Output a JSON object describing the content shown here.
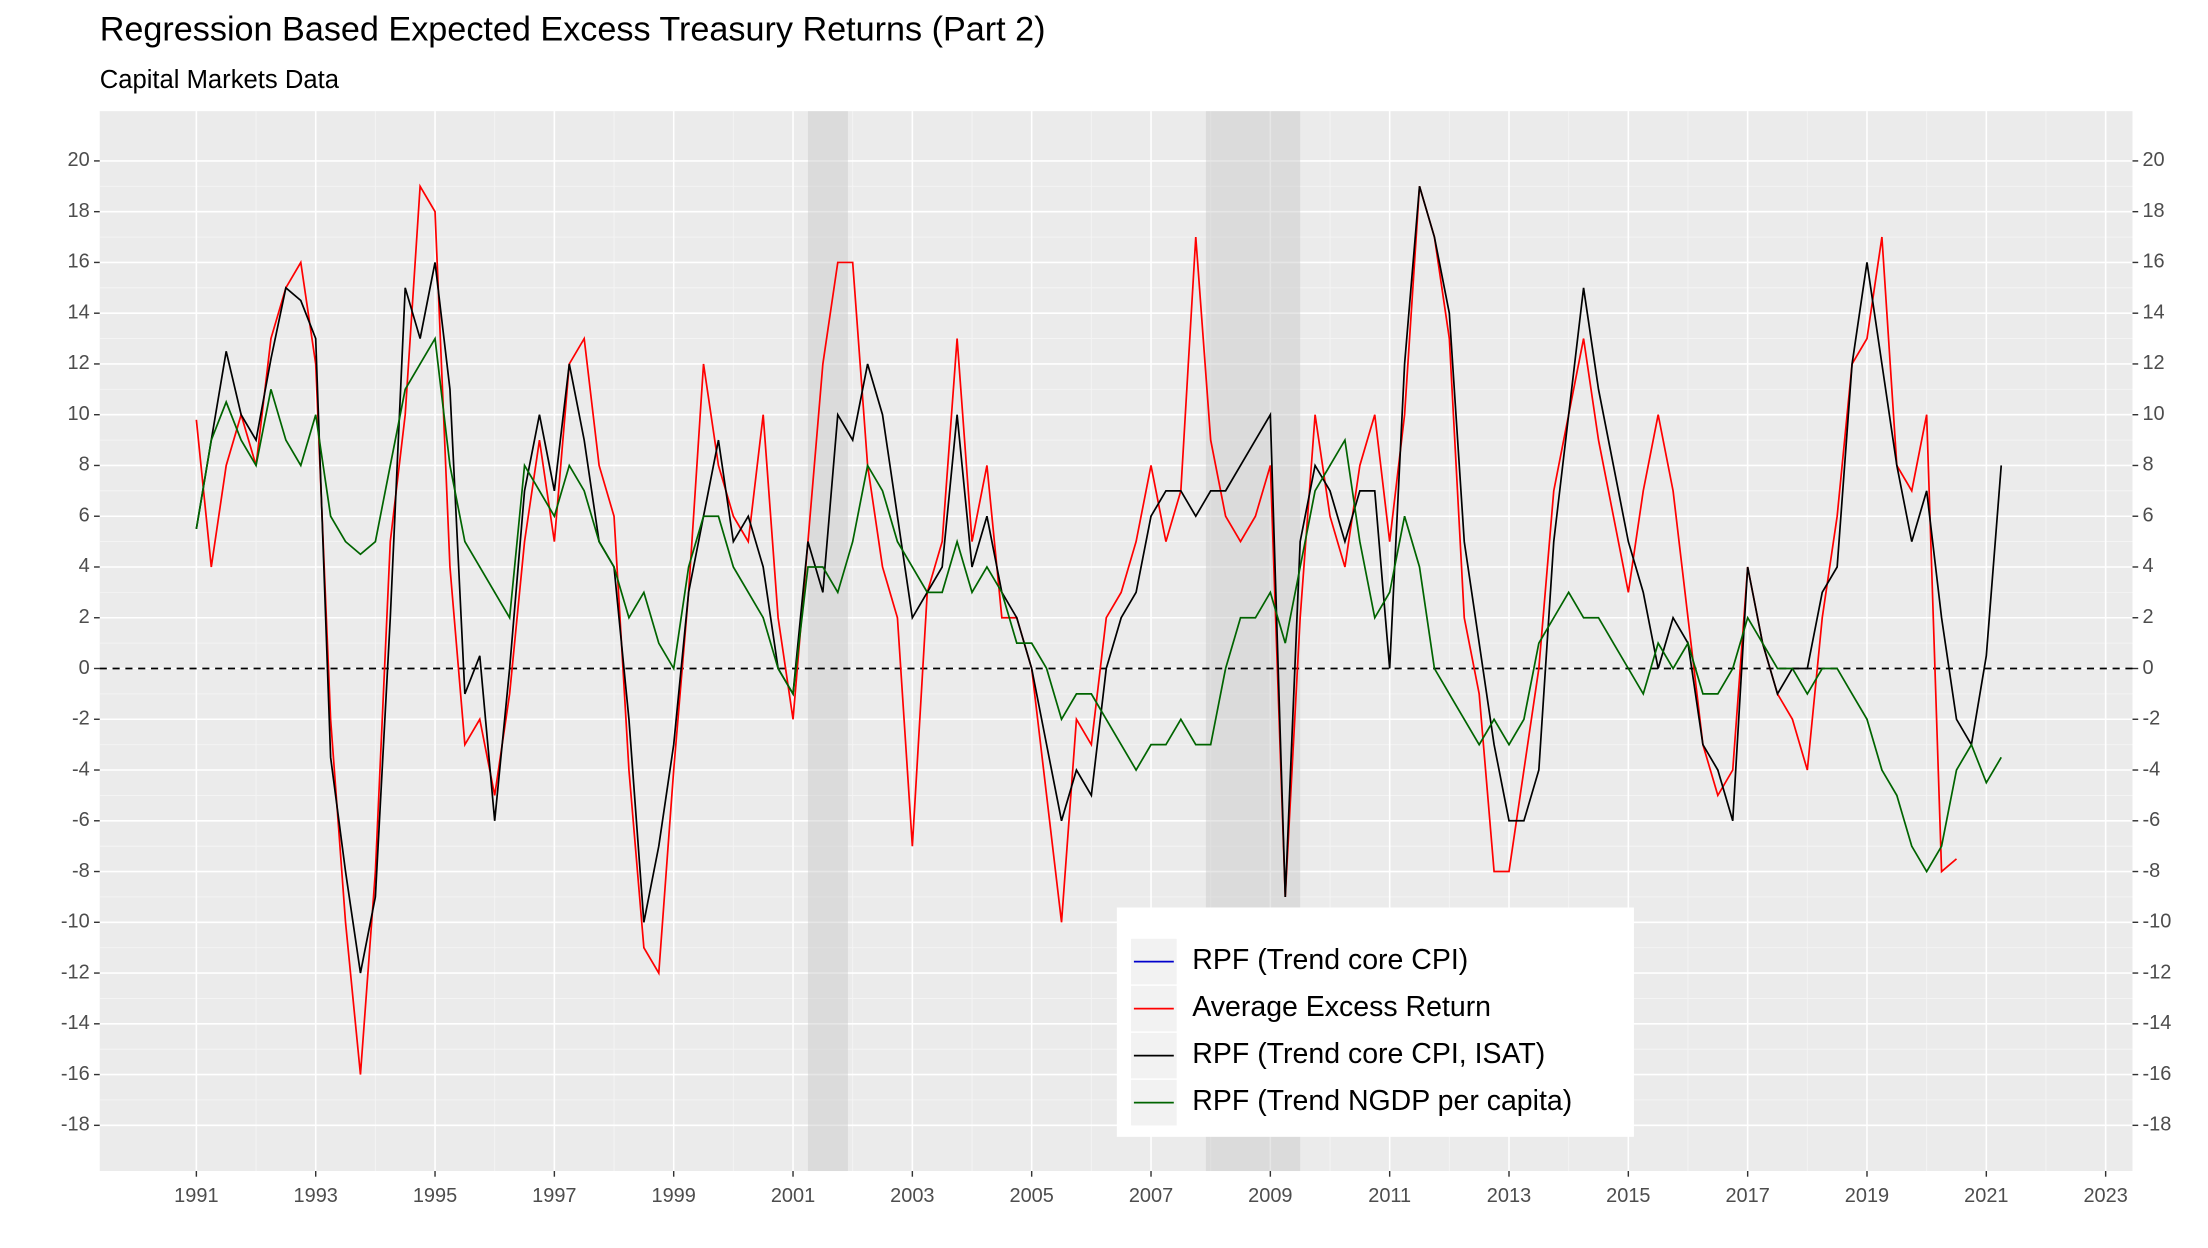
{
  "chart_data": {
    "type": "line",
    "title": "Regression Based Expected Excess Treasury Returns  (Part 2)",
    "subtitle": "Capital Markets Data",
    "x": [
      1991,
      1991.25,
      1991.5,
      1991.75,
      1992,
      1992.25,
      1992.5,
      1992.75,
      1993,
      1993.25,
      1993.5,
      1993.75,
      1994,
      1994.25,
      1994.5,
      1994.75,
      1995,
      1995.25,
      1995.5,
      1995.75,
      1996,
      1996.25,
      1996.5,
      1996.75,
      1997,
      1997.25,
      1997.5,
      1997.75,
      1998,
      1998.25,
      1998.5,
      1998.75,
      1999,
      1999.25,
      1999.5,
      1999.75,
      2000,
      2000.25,
      2000.5,
      2000.75,
      2001,
      2001.25,
      2001.5,
      2001.75,
      2002,
      2002.25,
      2002.5,
      2002.75,
      2003,
      2003.25,
      2003.5,
      2003.75,
      2004,
      2004.25,
      2004.5,
      2004.75,
      2005,
      2005.25,
      2005.5,
      2005.75,
      2006,
      2006.25,
      2006.5,
      2006.75,
      2007,
      2007.25,
      2007.5,
      2007.75,
      2008,
      2008.25,
      2008.5,
      2008.75,
      2009,
      2009.25,
      2009.5,
      2009.75,
      2010,
      2010.25,
      2010.5,
      2010.75,
      2011,
      2011.25,
      2011.5,
      2011.75,
      2012,
      2012.25,
      2012.5,
      2012.75,
      2013,
      2013.25,
      2013.5,
      2013.75,
      2014,
      2014.25,
      2014.5,
      2014.75,
      2015,
      2015.25,
      2015.5,
      2015.75,
      2016,
      2016.25,
      2016.5,
      2016.75,
      2017,
      2017.25,
      2017.5,
      2017.75,
      2018,
      2018.25,
      2018.5,
      2018.75,
      2019,
      2019.25,
      2019.5,
      2019.75,
      2020,
      2020.25,
      2020.5,
      2020.75,
      2021,
      2021.25
    ],
    "series": [
      {
        "name": "RPF (Trend core CPI)",
        "color": "#0000cc",
        "values": [
          null,
          null,
          null,
          null,
          null,
          null,
          null,
          null,
          null,
          null,
          null,
          null,
          null,
          null,
          null,
          null,
          null,
          null,
          null,
          null,
          null,
          null,
          null,
          null,
          null,
          null,
          null,
          null,
          null,
          null,
          null,
          null,
          null,
          null,
          null,
          null,
          null,
          null,
          null,
          null,
          null,
          null,
          null,
          null,
          null,
          null,
          null,
          null,
          null,
          null,
          null,
          null,
          null,
          null,
          null,
          null,
          null,
          null,
          null,
          null,
          null,
          null,
          null,
          null,
          null,
          null,
          null,
          null,
          null,
          null,
          null,
          null,
          null,
          null,
          null,
          null,
          null,
          null,
          null,
          null,
          null,
          null,
          null,
          null,
          null,
          null,
          null,
          null,
          null,
          null,
          null,
          null,
          null,
          null,
          null,
          null,
          null,
          null,
          null,
          null,
          null,
          null,
          null,
          null,
          null,
          null,
          null,
          null,
          null,
          null,
          null,
          null,
          null,
          null,
          null,
          null,
          null,
          null,
          null,
          null,
          null,
          null
        ]
      },
      {
        "name": "Average Excess Return",
        "color": "#ff0000",
        "values": [
          9.8,
          4,
          8,
          10,
          8,
          13,
          15,
          16,
          12,
          -2,
          -10,
          -16,
          -8,
          5,
          10,
          19,
          18,
          4,
          -3,
          -2,
          -5,
          -1,
          5,
          9,
          5,
          12,
          13,
          8,
          6,
          -4,
          -11,
          -12,
          -4,
          3,
          12,
          8,
          6,
          5,
          10,
          2,
          -2,
          5,
          12,
          16,
          16,
          8,
          4,
          2,
          -7,
          3,
          5,
          13,
          5,
          8,
          2,
          2,
          0,
          -5,
          -10,
          -2,
          -3,
          2,
          3,
          5,
          8,
          5,
          7,
          17,
          9,
          6,
          5,
          6,
          8,
          -9,
          2,
          10,
          6,
          4,
          8,
          10,
          5,
          10,
          19,
          17,
          13,
          2,
          -1,
          -8,
          -8,
          -4,
          0,
          7,
          10,
          13,
          9,
          6,
          3,
          7,
          10,
          7,
          2,
          -3,
          -5,
          -4,
          4,
          1,
          -1,
          -2,
          -4,
          2,
          6,
          12,
          13,
          17,
          8,
          7,
          10,
          -8,
          -7.5,
          null,
          null,
          null
        ]
      },
      {
        "name": "RPF (Trend core CPI, ISAT)",
        "color": "#000000",
        "values": [
          5.5,
          9,
          12.5,
          10,
          9,
          12.2,
          15,
          14.5,
          13,
          -3.5,
          -8,
          -12,
          -9,
          2,
          15,
          13,
          16,
          11,
          -1,
          0.5,
          -6,
          0,
          7,
          10,
          7,
          12,
          9,
          5,
          4,
          -2,
          -10,
          -7,
          -3,
          3,
          6,
          9,
          5,
          6,
          4,
          0,
          -1,
          5,
          3,
          10,
          9,
          12,
          10,
          6,
          2,
          3,
          4,
          10,
          4,
          6,
          3,
          2,
          0,
          -3,
          -6,
          -4,
          -5,
          0,
          2,
          3,
          6,
          7,
          7,
          6,
          7,
          7,
          8,
          9,
          10,
          -9,
          5,
          8,
          7,
          5,
          7,
          7,
          0,
          12,
          19,
          17,
          14,
          5,
          1,
          -3,
          -6,
          -6,
          -4,
          5,
          10,
          15,
          11,
          8,
          5,
          3,
          0,
          2,
          1,
          -3,
          -4,
          -6,
          4,
          1,
          -1,
          0,
          0,
          3,
          4,
          12,
          16,
          12,
          8,
          5,
          7,
          2,
          -2,
          -3,
          0.5,
          8
        ]
      },
      {
        "name": "RPF (Trend NGDP per capita)",
        "color": "#006400",
        "values": [
          5.5,
          9,
          10.5,
          9,
          8,
          11,
          9,
          8,
          10,
          6,
          5,
          4.5,
          5,
          8,
          11,
          12,
          13,
          8,
          5,
          4,
          3,
          2,
          8,
          7,
          6,
          8,
          7,
          5,
          4,
          2,
          3,
          1,
          0,
          4,
          6,
          6,
          4,
          3,
          2,
          0,
          -1,
          4,
          4,
          3,
          5,
          8,
          7,
          5,
          4,
          3,
          3,
          5,
          3,
          4,
          3,
          1,
          1,
          0,
          -2,
          -1,
          -1,
          -2,
          -3,
          -4,
          -3,
          -3,
          -2,
          -3,
          -3,
          0,
          2,
          2,
          3,
          1,
          4,
          7,
          8,
          9,
          5,
          2,
          3,
          6,
          4,
          0,
          -1,
          -2,
          -3,
          -2,
          -3,
          -2,
          1,
          2,
          3,
          2,
          2,
          1,
          0,
          -1,
          1,
          0,
          1,
          -1,
          -1,
          0,
          2,
          1,
          0,
          0,
          -1,
          0,
          0,
          -1,
          -2,
          -4,
          -5,
          -7,
          -8,
          -7,
          -4,
          -3,
          -4.5,
          -3.5
        ]
      }
    ],
    "recessions": [
      [
        2001.25,
        2001.92
      ],
      [
        2007.92,
        2009.5
      ]
    ],
    "hline": 0,
    "xlim": [
      1989.38,
      2023.45
    ],
    "xticks": [
      1991,
      1993,
      1995,
      1997,
      1999,
      2001,
      2003,
      2005,
      2007,
      2009,
      2011,
      2013,
      2015,
      2017,
      2019,
      2021,
      2023
    ],
    "ylim": [
      -19.8,
      21.96
    ],
    "yticks": [
      -18,
      -16,
      -14,
      -12,
      -10,
      -8,
      -6,
      -4,
      -2,
      0,
      2,
      4,
      6,
      8,
      10,
      12,
      14,
      16,
      18,
      20
    ],
    "y2lim": [
      -19.8,
      21.96
    ],
    "y2ticks": [
      -18,
      -16,
      -14,
      -12,
      -10,
      -8,
      -6,
      -4,
      -2,
      0,
      2,
      4,
      6,
      8,
      10,
      12,
      14,
      16,
      18,
      20
    ],
    "grid": true,
    "legend": "bottom-center"
  }
}
